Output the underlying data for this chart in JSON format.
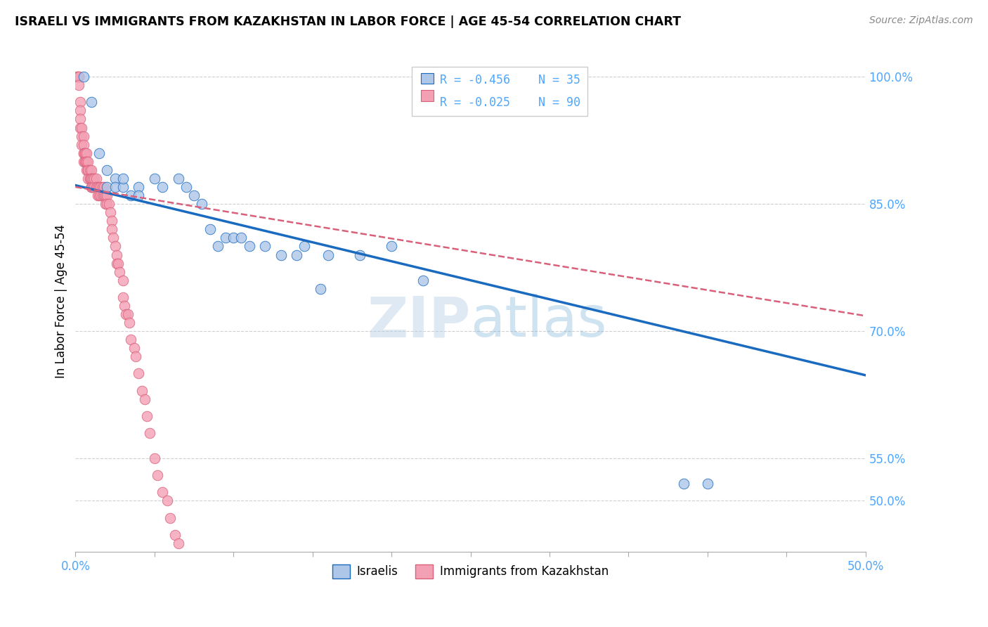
{
  "title": "ISRAELI VS IMMIGRANTS FROM KAZAKHSTAN IN LABOR FORCE | AGE 45-54 CORRELATION CHART",
  "source": "Source: ZipAtlas.com",
  "ylabel": "In Labor Force | Age 45-54",
  "xlim": [
    0.0,
    0.5
  ],
  "ylim": [
    0.44,
    1.03
  ],
  "xticks": [
    0.0,
    0.05,
    0.1,
    0.15,
    0.2,
    0.25,
    0.3,
    0.35,
    0.4,
    0.45,
    0.5
  ],
  "xtick_labels": [
    "0.0%",
    "",
    "",
    "",
    "",
    "",
    "",
    "",
    "",
    "",
    "50.0%"
  ],
  "ytick_positions": [
    0.5,
    0.55,
    0.7,
    0.85,
    1.0
  ],
  "ytick_labels": [
    "50.0%",
    "55.0%",
    "70.0%",
    "85.0%",
    "100.0%"
  ],
  "legend_R_blue": "R = -0.456",
  "legend_N_blue": "N = 35",
  "legend_R_pink": "R = -0.025",
  "legend_N_pink": "N = 90",
  "legend_label_blue": "Israelis",
  "legend_label_pink": "Immigrants from Kazakhstan",
  "color_blue": "#aec6e8",
  "color_pink": "#f4a0b4",
  "color_line_blue": "#1a6bbf",
  "color_line_pink": "#d9607a",
  "color_axis_text": "#4da6ff",
  "watermark": "ZIPatlas",
  "grid_color": "#d0d0d0",
  "blue_line_x0": 0.0,
  "blue_line_y0": 0.872,
  "blue_line_x1": 0.5,
  "blue_line_y1": 0.648,
  "pink_line_x0": 0.0,
  "pink_line_y0": 0.87,
  "pink_line_x1": 0.5,
  "pink_line_y1": 0.718,
  "blue_scatter_x": [
    0.005,
    0.01,
    0.015,
    0.02,
    0.02,
    0.025,
    0.025,
    0.03,
    0.03,
    0.035,
    0.04,
    0.04,
    0.05,
    0.055,
    0.065,
    0.07,
    0.075,
    0.08,
    0.085,
    0.09,
    0.095,
    0.1,
    0.105,
    0.11,
    0.12,
    0.13,
    0.14,
    0.145,
    0.155,
    0.16,
    0.18,
    0.2,
    0.22,
    0.385,
    0.4
  ],
  "blue_scatter_y": [
    1.0,
    0.97,
    0.91,
    0.89,
    0.87,
    0.88,
    0.87,
    0.87,
    0.88,
    0.86,
    0.87,
    0.86,
    0.88,
    0.87,
    0.88,
    0.87,
    0.86,
    0.85,
    0.82,
    0.8,
    0.81,
    0.81,
    0.81,
    0.8,
    0.8,
    0.79,
    0.79,
    0.8,
    0.75,
    0.79,
    0.79,
    0.8,
    0.76,
    0.52,
    0.52
  ],
  "pink_scatter_x": [
    0.001,
    0.001,
    0.002,
    0.002,
    0.002,
    0.003,
    0.003,
    0.003,
    0.003,
    0.004,
    0.004,
    0.004,
    0.005,
    0.005,
    0.005,
    0.005,
    0.005,
    0.006,
    0.006,
    0.006,
    0.006,
    0.007,
    0.007,
    0.007,
    0.007,
    0.008,
    0.008,
    0.008,
    0.008,
    0.009,
    0.009,
    0.009,
    0.01,
    0.01,
    0.01,
    0.01,
    0.01,
    0.01,
    0.011,
    0.011,
    0.012,
    0.012,
    0.013,
    0.013,
    0.014,
    0.014,
    0.015,
    0.015,
    0.016,
    0.016,
    0.017,
    0.017,
    0.018,
    0.018,
    0.019,
    0.019,
    0.02,
    0.02,
    0.021,
    0.022,
    0.023,
    0.023,
    0.024,
    0.025,
    0.026,
    0.026,
    0.027,
    0.028,
    0.03,
    0.03,
    0.031,
    0.032,
    0.033,
    0.034,
    0.035,
    0.037,
    0.038,
    0.04,
    0.042,
    0.044,
    0.045,
    0.047,
    0.05,
    0.052,
    0.055,
    0.058,
    0.06,
    0.063,
    0.065,
    0.07
  ],
  "pink_scatter_y": [
    1.0,
    1.0,
    1.0,
    1.0,
    0.99,
    0.97,
    0.96,
    0.95,
    0.94,
    0.94,
    0.93,
    0.92,
    0.93,
    0.92,
    0.91,
    0.91,
    0.9,
    0.91,
    0.91,
    0.9,
    0.9,
    0.91,
    0.9,
    0.9,
    0.89,
    0.9,
    0.89,
    0.89,
    0.88,
    0.89,
    0.88,
    0.88,
    0.89,
    0.88,
    0.88,
    0.87,
    0.87,
    0.87,
    0.88,
    0.87,
    0.88,
    0.87,
    0.88,
    0.87,
    0.87,
    0.86,
    0.87,
    0.86,
    0.87,
    0.86,
    0.87,
    0.86,
    0.87,
    0.86,
    0.86,
    0.85,
    0.86,
    0.85,
    0.85,
    0.84,
    0.83,
    0.82,
    0.81,
    0.8,
    0.79,
    0.78,
    0.78,
    0.77,
    0.76,
    0.74,
    0.73,
    0.72,
    0.72,
    0.71,
    0.69,
    0.68,
    0.67,
    0.65,
    0.63,
    0.62,
    0.6,
    0.58,
    0.55,
    0.53,
    0.51,
    0.5,
    0.48,
    0.46,
    0.45,
    0.43
  ]
}
